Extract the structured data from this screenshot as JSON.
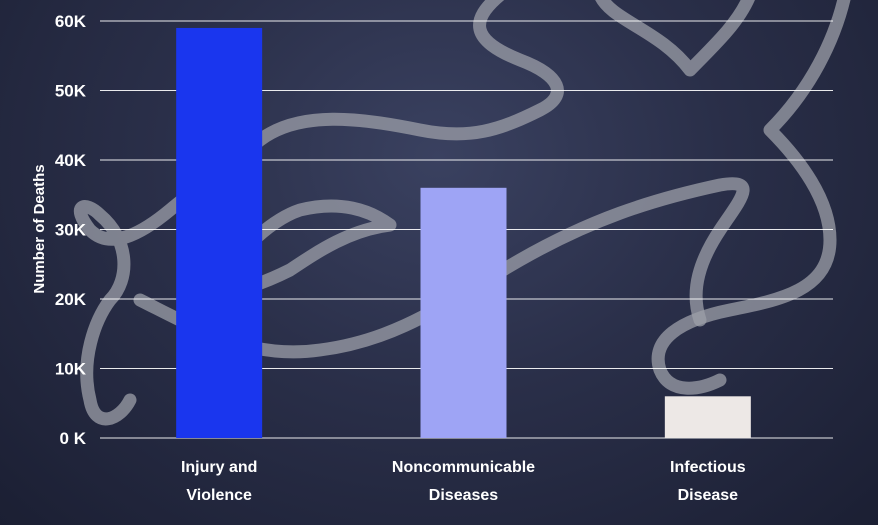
{
  "chart_data": {
    "type": "bar",
    "title": "",
    "xlabel": "",
    "ylabel": "Number of Deaths",
    "categories": [
      [
        "Injury and",
        "Violence"
      ],
      [
        "Noncommunicable",
        "Diseases"
      ],
      [
        "Infectious",
        "Disease"
      ]
    ],
    "values": [
      59000,
      36000,
      6000
    ],
    "colors": [
      "#1a36ee",
      "#9ea4f5",
      "#ede8e6"
    ],
    "ylim": [
      0,
      60000
    ],
    "yticks": [
      0,
      10000,
      20000,
      30000,
      40000,
      50000,
      60000
    ],
    "ytick_labels": [
      "0 K",
      "10K",
      "20K",
      "30K",
      "40K",
      "50K",
      "60K"
    ],
    "grid": true,
    "legend": "none",
    "gridline_color": "#ffffff"
  }
}
